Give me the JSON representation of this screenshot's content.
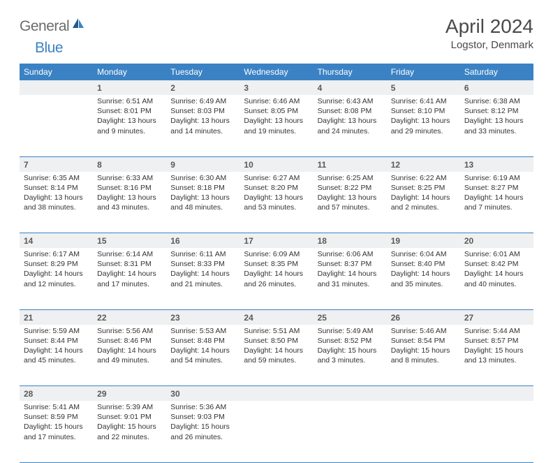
{
  "logo": {
    "text1": "General",
    "text2": "Blue"
  },
  "title": "April 2024",
  "subtitle": "Logstor, Denmark",
  "colors": {
    "header_bg": "#3b82c4",
    "header_text": "#ffffff",
    "daynum_bg": "#eef0f1",
    "border": "#3b82c4",
    "body_text": "#333333",
    "title_text": "#4a4a4a",
    "logo_gray": "#6b6b6b",
    "logo_blue": "#3b82c4"
  },
  "weekdays": [
    "Sunday",
    "Monday",
    "Tuesday",
    "Wednesday",
    "Thursday",
    "Friday",
    "Saturday"
  ],
  "first_weekday_index": 1,
  "days": [
    {
      "n": 1,
      "sunrise": "6:51 AM",
      "sunset": "8:01 PM",
      "daylight": "13 hours and 9 minutes."
    },
    {
      "n": 2,
      "sunrise": "6:49 AM",
      "sunset": "8:03 PM",
      "daylight": "13 hours and 14 minutes."
    },
    {
      "n": 3,
      "sunrise": "6:46 AM",
      "sunset": "8:05 PM",
      "daylight": "13 hours and 19 minutes."
    },
    {
      "n": 4,
      "sunrise": "6:43 AM",
      "sunset": "8:08 PM",
      "daylight": "13 hours and 24 minutes."
    },
    {
      "n": 5,
      "sunrise": "6:41 AM",
      "sunset": "8:10 PM",
      "daylight": "13 hours and 29 minutes."
    },
    {
      "n": 6,
      "sunrise": "6:38 AM",
      "sunset": "8:12 PM",
      "daylight": "13 hours and 33 minutes."
    },
    {
      "n": 7,
      "sunrise": "6:35 AM",
      "sunset": "8:14 PM",
      "daylight": "13 hours and 38 minutes."
    },
    {
      "n": 8,
      "sunrise": "6:33 AM",
      "sunset": "8:16 PM",
      "daylight": "13 hours and 43 minutes."
    },
    {
      "n": 9,
      "sunrise": "6:30 AM",
      "sunset": "8:18 PM",
      "daylight": "13 hours and 48 minutes."
    },
    {
      "n": 10,
      "sunrise": "6:27 AM",
      "sunset": "8:20 PM",
      "daylight": "13 hours and 53 minutes."
    },
    {
      "n": 11,
      "sunrise": "6:25 AM",
      "sunset": "8:22 PM",
      "daylight": "13 hours and 57 minutes."
    },
    {
      "n": 12,
      "sunrise": "6:22 AM",
      "sunset": "8:25 PM",
      "daylight": "14 hours and 2 minutes."
    },
    {
      "n": 13,
      "sunrise": "6:19 AM",
      "sunset": "8:27 PM",
      "daylight": "14 hours and 7 minutes."
    },
    {
      "n": 14,
      "sunrise": "6:17 AM",
      "sunset": "8:29 PM",
      "daylight": "14 hours and 12 minutes."
    },
    {
      "n": 15,
      "sunrise": "6:14 AM",
      "sunset": "8:31 PM",
      "daylight": "14 hours and 17 minutes."
    },
    {
      "n": 16,
      "sunrise": "6:11 AM",
      "sunset": "8:33 PM",
      "daylight": "14 hours and 21 minutes."
    },
    {
      "n": 17,
      "sunrise": "6:09 AM",
      "sunset": "8:35 PM",
      "daylight": "14 hours and 26 minutes."
    },
    {
      "n": 18,
      "sunrise": "6:06 AM",
      "sunset": "8:37 PM",
      "daylight": "14 hours and 31 minutes."
    },
    {
      "n": 19,
      "sunrise": "6:04 AM",
      "sunset": "8:40 PM",
      "daylight": "14 hours and 35 minutes."
    },
    {
      "n": 20,
      "sunrise": "6:01 AM",
      "sunset": "8:42 PM",
      "daylight": "14 hours and 40 minutes."
    },
    {
      "n": 21,
      "sunrise": "5:59 AM",
      "sunset": "8:44 PM",
      "daylight": "14 hours and 45 minutes."
    },
    {
      "n": 22,
      "sunrise": "5:56 AM",
      "sunset": "8:46 PM",
      "daylight": "14 hours and 49 minutes."
    },
    {
      "n": 23,
      "sunrise": "5:53 AM",
      "sunset": "8:48 PM",
      "daylight": "14 hours and 54 minutes."
    },
    {
      "n": 24,
      "sunrise": "5:51 AM",
      "sunset": "8:50 PM",
      "daylight": "14 hours and 59 minutes."
    },
    {
      "n": 25,
      "sunrise": "5:49 AM",
      "sunset": "8:52 PM",
      "daylight": "15 hours and 3 minutes."
    },
    {
      "n": 26,
      "sunrise": "5:46 AM",
      "sunset": "8:54 PM",
      "daylight": "15 hours and 8 minutes."
    },
    {
      "n": 27,
      "sunrise": "5:44 AM",
      "sunset": "8:57 PM",
      "daylight": "15 hours and 13 minutes."
    },
    {
      "n": 28,
      "sunrise": "5:41 AM",
      "sunset": "8:59 PM",
      "daylight": "15 hours and 17 minutes."
    },
    {
      "n": 29,
      "sunrise": "5:39 AM",
      "sunset": "9:01 PM",
      "daylight": "15 hours and 22 minutes."
    },
    {
      "n": 30,
      "sunrise": "5:36 AM",
      "sunset": "9:03 PM",
      "daylight": "15 hours and 26 minutes."
    }
  ]
}
